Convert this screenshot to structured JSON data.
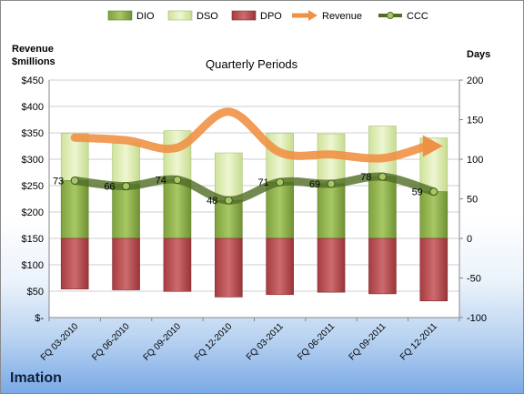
{
  "company": "Imation",
  "chart_data": {
    "type": "bar",
    "title": "Quarterly Periods",
    "left_axis_label_line1": "Revenue",
    "left_axis_label_line2": "$millions",
    "right_axis_label": "Days",
    "categories": [
      "FQ 03-2010",
      "FQ 06-2010",
      "FQ 09-2010",
      "FQ 12-2010",
      "FQ 03-2011",
      "FQ 06-2011",
      "FQ 09-2011",
      "FQ 12-2011"
    ],
    "left_ticks": [
      "$450",
      "$400",
      "$350",
      "$300",
      "$250",
      "$200",
      "$150",
      "$100",
      "$50",
      "$-"
    ],
    "right_ticks": [
      "200",
      "150",
      "100",
      "50",
      "0",
      "-50",
      "-100"
    ],
    "ylim_left": [
      0,
      450
    ],
    "ylim_right": [
      -100,
      200
    ],
    "series": [
      {
        "name": "DIO",
        "kind": "bar",
        "color": "#8fb34a",
        "values": [
          73,
          68,
          74,
          48,
          71,
          69,
          78,
          59
        ]
      },
      {
        "name": "DSO",
        "kind": "bar",
        "color": "#d8e9a8",
        "values": [
          60,
          52,
          62,
          60,
          62,
          63,
          64,
          68
        ]
      },
      {
        "name": "DPO",
        "kind": "bar",
        "color": "#b8474b",
        "values": [
          -64,
          -65,
          -67,
          -74,
          -71,
          -68,
          -70,
          -79
        ]
      },
      {
        "name": "Revenue",
        "kind": "line",
        "color": "#ef9145",
        "values": [
          341,
          336,
          322,
          390,
          313,
          309,
          302,
          325
        ]
      },
      {
        "name": "CCC",
        "kind": "line",
        "color": "#5a7a2a",
        "values": [
          73,
          66,
          74,
          48,
          71,
          69,
          78,
          59
        ]
      }
    ],
    "ccc_labels": [
      "73",
      "66",
      "74",
      "48",
      "71",
      "69",
      "78",
      "59"
    ],
    "grid": true,
    "legend_position": "top"
  }
}
